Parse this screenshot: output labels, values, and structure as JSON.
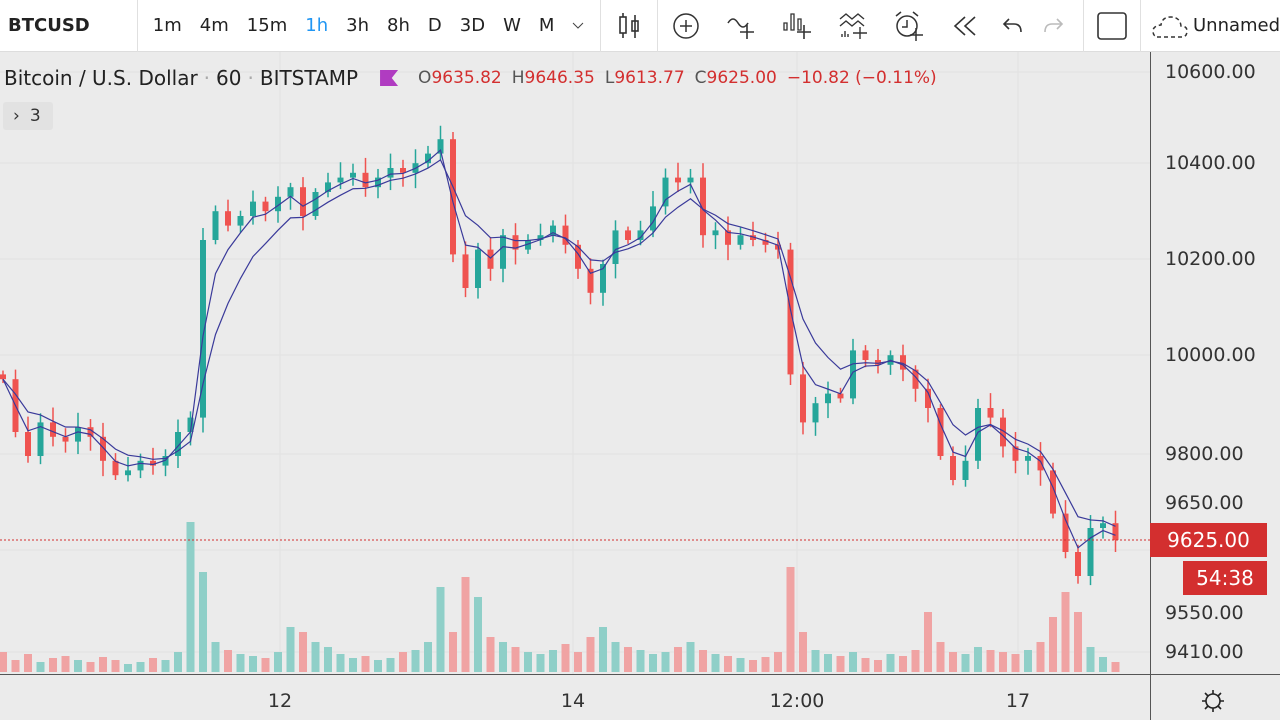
{
  "toolbar": {
    "symbol": "BTCUSD",
    "intervals": [
      "1m",
      "4m",
      "15m",
      "1h",
      "3h",
      "8h",
      "D",
      "3D",
      "W",
      "M"
    ],
    "active_interval": "1h",
    "layout_name": "Unnamed"
  },
  "legend": {
    "title": "Bitcoin / U.S. Dollar",
    "interval": "60",
    "exchange": "BITSTAMP",
    "open_k": "O",
    "open": "9635.82",
    "high_k": "H",
    "high": "9646.35",
    "low_k": "L",
    "low": "9613.77",
    "close_k": "C",
    "close": "9625.00",
    "change": "−10.82 (−0.11%)",
    "indicators_count": "3"
  },
  "price_axis": {
    "labels": [
      "10600.00",
      "10400.00",
      "10200.00",
      "10000.00",
      "9800.00",
      "9650.00",
      "9550.00",
      "9410.00"
    ],
    "last_price": "9625.00",
    "countdown": "54:38"
  },
  "time_axis": {
    "labels": [
      "12",
      "14",
      "12:00",
      "17"
    ]
  },
  "colors": {
    "up": "#26a69a",
    "down": "#ef5350",
    "ma": "#3a3a9a",
    "last": "#d32f2f"
  },
  "chart_data": {
    "type": "candlestick",
    "symbol": "BTCUSD",
    "interval": "60",
    "ylim": [
      9410,
      10600
    ],
    "close": [
      9960,
      9850,
      9800,
      9870,
      9840,
      9830,
      9860,
      9840,
      9790,
      9760,
      9770,
      9790,
      9780,
      9800,
      9850,
      9880,
      10250,
      10310,
      10280,
      10300,
      10330,
      10310,
      10340,
      10360,
      10300,
      10350,
      10370,
      10380,
      10390,
      10360,
      10380,
      10400,
      10390,
      10410,
      10430,
      10460,
      10220,
      10150,
      10230,
      10190,
      10260,
      10230,
      10250,
      10260,
      10280,
      10240,
      10190,
      10140,
      10200,
      10270,
      10250,
      10270,
      10320,
      10380,
      10370,
      10380,
      10260,
      10270,
      10240,
      10260,
      10250,
      10240,
      10230,
      9970,
      9870,
      9910,
      9930,
      9920,
      10020,
      10000,
      9990,
      10010,
      9980,
      9940,
      9900,
      9800,
      9750,
      9790,
      9900,
      9880,
      9820,
      9790,
      9800,
      9770,
      9680,
      9600,
      9550,
      9650,
      9660,
      9625
    ],
    "volume": [
      20,
      12,
      18,
      10,
      14,
      16,
      12,
      10,
      15,
      12,
      8,
      10,
      14,
      12,
      20,
      150,
      100,
      30,
      22,
      18,
      16,
      14,
      20,
      45,
      40,
      30,
      25,
      18,
      14,
      16,
      12,
      14,
      20,
      22,
      30,
      85,
      40,
      95,
      75,
      35,
      30,
      25,
      20,
      18,
      22,
      28,
      20,
      35,
      45,
      30,
      25,
      22,
      18,
      20,
      25,
      30,
      22,
      18,
      16,
      14,
      12,
      15,
      20,
      105,
      40,
      22,
      18,
      16,
      20,
      14,
      12,
      18,
      16,
      22,
      60,
      30,
      20,
      18,
      25,
      22,
      20,
      18,
      22,
      30,
      55,
      80,
      60,
      25,
      15,
      10
    ],
    "ma_periods": [
      3,
      6
    ]
  }
}
